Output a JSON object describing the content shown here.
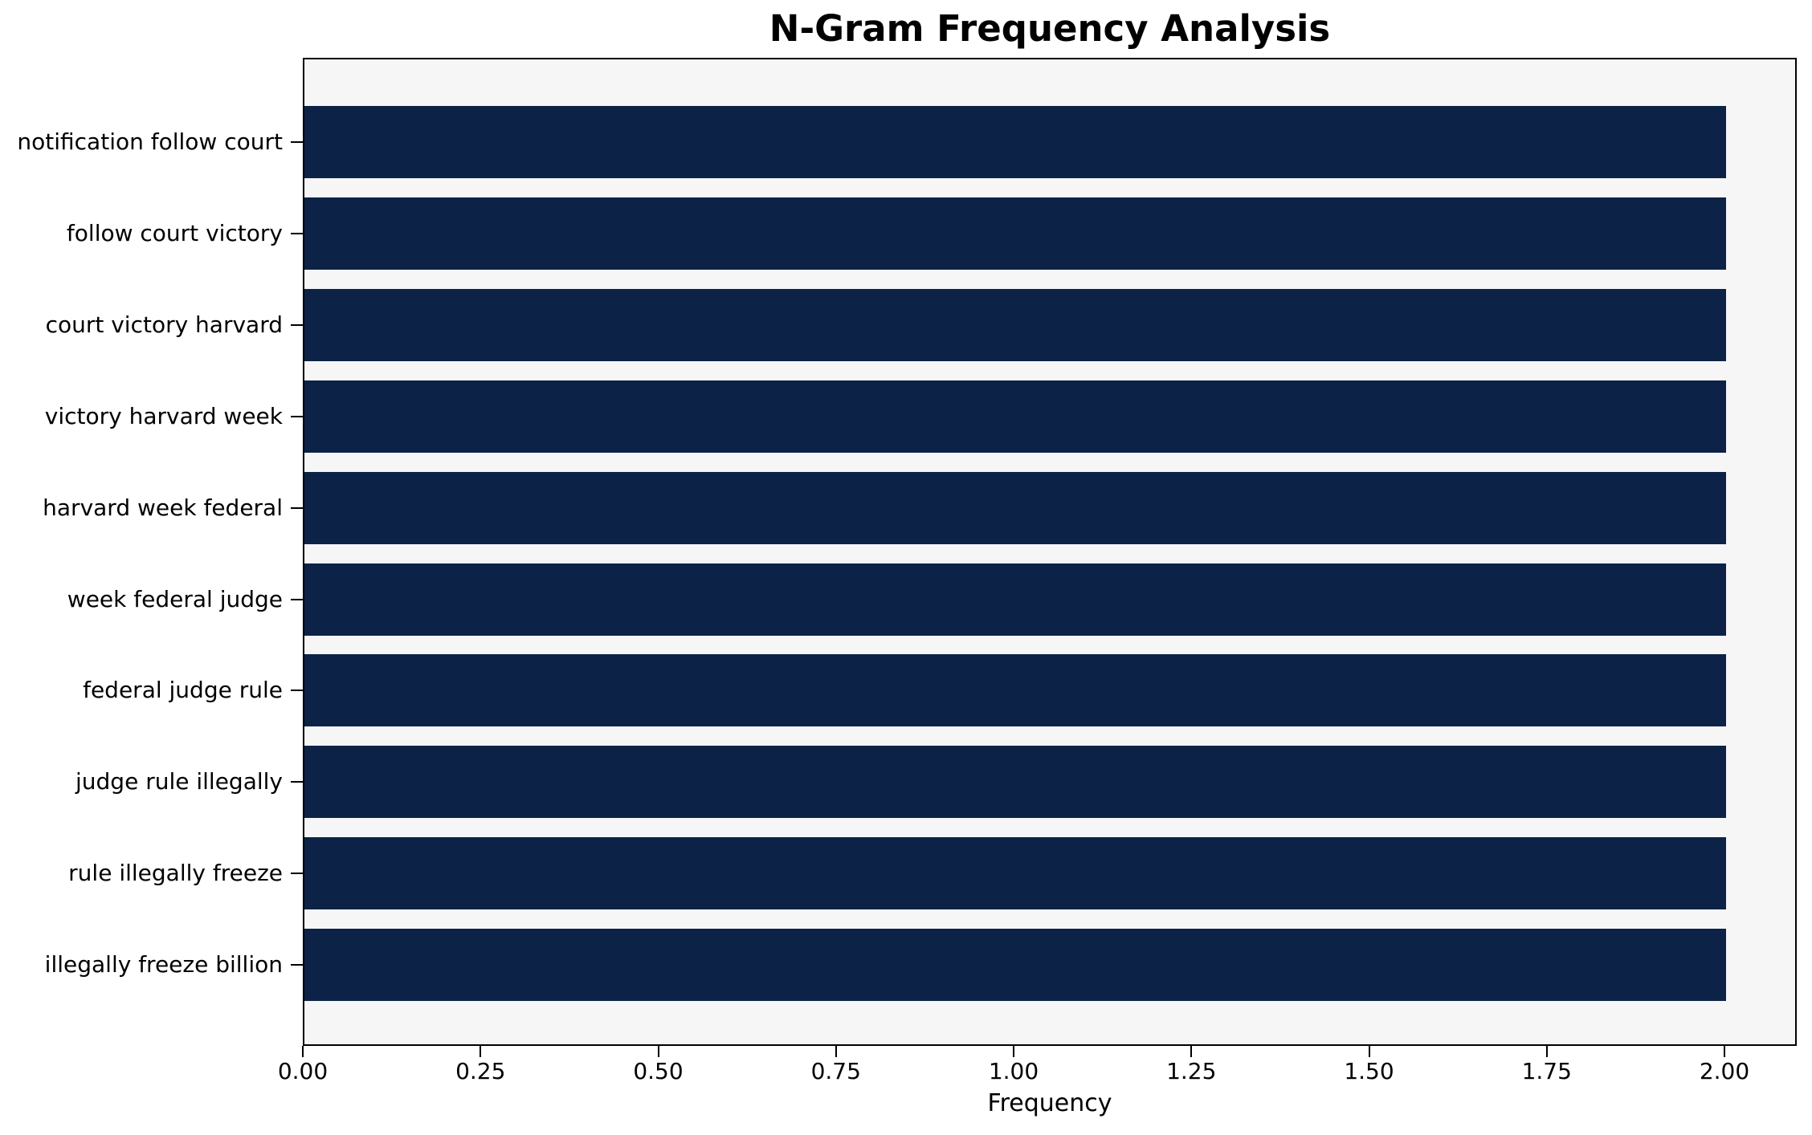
{
  "chart_data": {
    "type": "bar",
    "orientation": "horizontal",
    "title": "N-Gram Frequency Analysis",
    "xlabel": "Frequency",
    "ylabel": "",
    "categories": [
      "notification follow court",
      "follow court victory",
      "court victory harvard",
      "victory harvard week",
      "harvard week federal",
      "week federal judge",
      "federal judge rule",
      "judge rule illegally",
      "rule illegally freeze",
      "illegally freeze billion"
    ],
    "values": [
      2,
      2,
      2,
      2,
      2,
      2,
      2,
      2,
      2,
      2
    ],
    "xlim": [
      0,
      2.1
    ],
    "xticks": [
      0,
      0.25,
      0.5,
      0.75,
      1.0,
      1.25,
      1.5,
      1.75,
      2.0
    ],
    "xtick_labels": [
      "0.00",
      "0.25",
      "0.50",
      "0.75",
      "1.00",
      "1.25",
      "1.50",
      "1.75",
      "2.00"
    ],
    "grid": false,
    "legend": null,
    "colors": {
      "bar": "#0c2347",
      "plot_background": "#f6f6f7",
      "figure_background": "#ffffff",
      "text": "#000000",
      "axis": "#000000"
    }
  }
}
